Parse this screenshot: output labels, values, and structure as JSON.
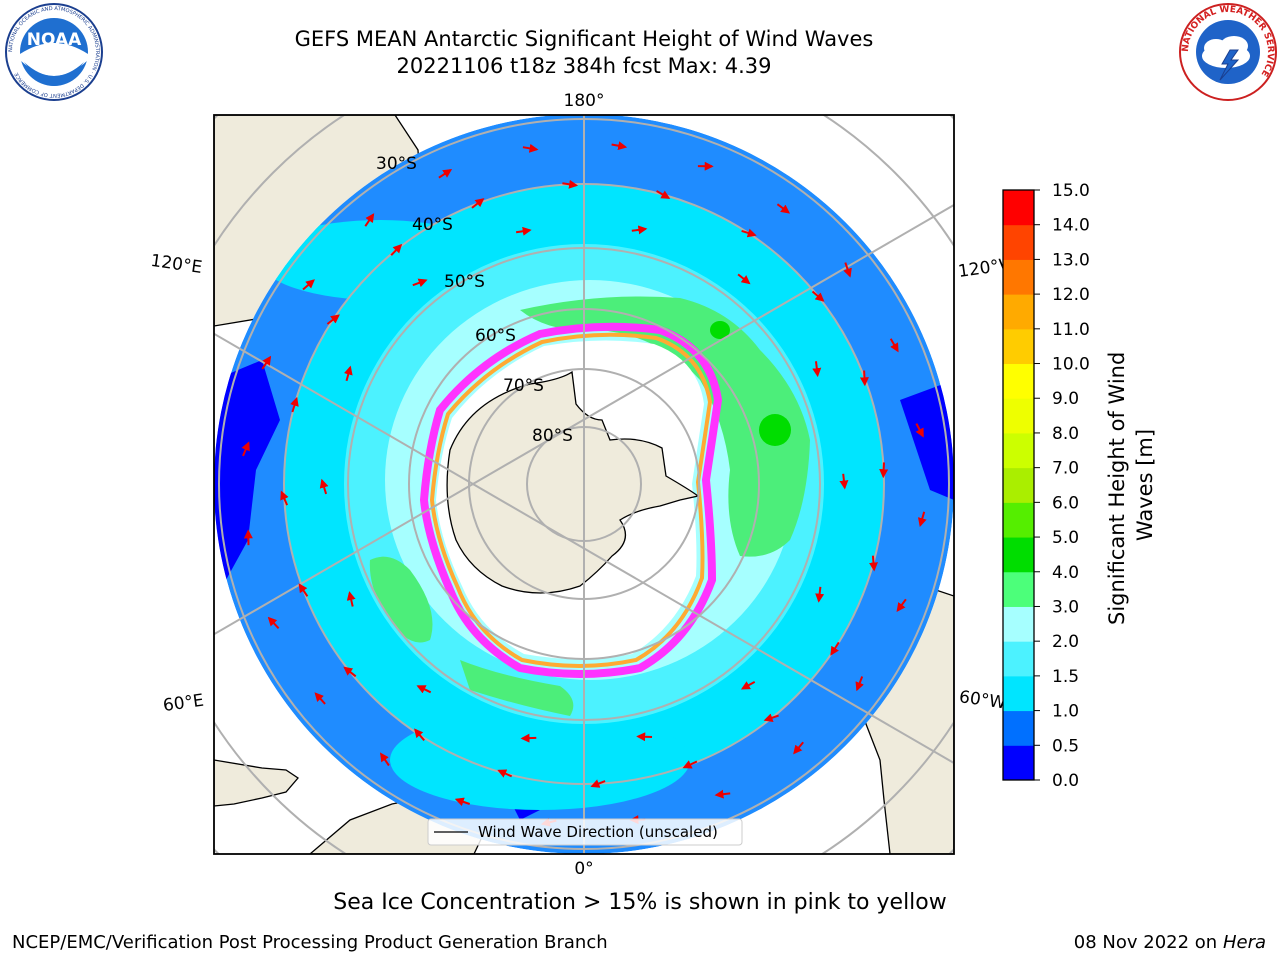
{
  "header": {
    "title_line1": "GEFS MEAN Antarctic Significant Height of Wind Waves",
    "title_line2": "20221106 t18z 384h fcst   Max: 4.39",
    "noaa_logo_text": "NOAA",
    "noaa_logo_ring_text": "NATIONAL OCEANIC AND ATMOSPHERIC ADMINISTRATION · U.S. DEPARTMENT OF COMMERCE",
    "nws_logo_ring_text": "NATIONAL WEATHER SERVICE"
  },
  "map": {
    "projection": "south polar stereographic",
    "meridian_labels": {
      "top": "180°",
      "bottom": "0°",
      "left_upper": "120°E",
      "left_lower": "60°E",
      "right_upper": "120°W",
      "right_lower": "60°W"
    },
    "parallel_labels": [
      "30°S",
      "40°S",
      "50°S",
      "60°S",
      "70°S",
      "80°S"
    ],
    "legend": "Wind Wave Direction (unscaled)",
    "sea_ice_colors": [
      "#ff33ff",
      "#ffaa33",
      "#ffff66"
    ],
    "land_color": "#efebdc"
  },
  "colorbar": {
    "label": "Significant Height of Wind Waves [m]",
    "ticks": [
      "0.0",
      "0.5",
      "1.0",
      "1.5",
      "2.0",
      "3.0",
      "4.0",
      "5.0",
      "6.0",
      "7.0",
      "8.0",
      "9.0",
      "10.0",
      "11.0",
      "12.0",
      "13.0",
      "14.0",
      "15.0"
    ],
    "colors": [
      "#0000ff",
      "#0070ff",
      "#00e5ff",
      "#4cf2ff",
      "#a6ffff",
      "#4cff7a",
      "#00dd00",
      "#55ee00",
      "#aaee00",
      "#ccff00",
      "#eeff00",
      "#ffff00",
      "#ffcc00",
      "#ffaa00",
      "#ff7700",
      "#ff4400",
      "#ff0000"
    ]
  },
  "footer": {
    "sea_ice_note": "Sea Ice Concentration > 15% is shown in pink to yellow",
    "credit": "NCEP/EMC/Verification Post Processing Product Generation Branch",
    "date": "08 Nov 2022 on",
    "host": "Hera"
  }
}
